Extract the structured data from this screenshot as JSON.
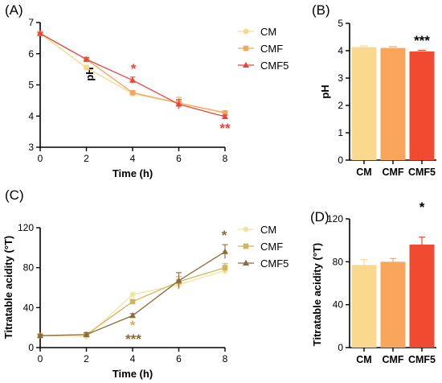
{
  "chart_data": [
    {
      "panel": "(A)",
      "type": "line",
      "xlabel": "Time (h)",
      "ylabel": "pH",
      "xlim": [
        0,
        8
      ],
      "ylim": [
        3,
        7
      ],
      "x": [
        0,
        2,
        4,
        6,
        8
      ],
      "xticks": [
        "0",
        "2",
        "4",
        "6",
        "8"
      ],
      "yticks": [
        "3",
        "4",
        "5",
        "6",
        "7"
      ],
      "series": [
        {
          "name": "CM",
          "color": "#f7d98b",
          "marker": "circle",
          "values": [
            6.65,
            5.55,
            4.72,
            4.42,
            4.12
          ],
          "err": [
            0.03,
            0.08,
            0.06,
            0.1,
            0.05
          ]
        },
        {
          "name": "CMF",
          "color": "#f5a55c",
          "marker": "square",
          "values": [
            6.65,
            5.82,
            4.75,
            4.42,
            4.1
          ],
          "err": [
            0.03,
            0.06,
            0.06,
            0.18,
            0.05
          ]
        },
        {
          "name": "CMF5",
          "color": "#e8453c",
          "marker": "triangle",
          "values": [
            6.65,
            5.82,
            5.15,
            4.38,
            3.98
          ],
          "err": [
            0.03,
            0.05,
            0.1,
            0.15,
            0.05
          ]
        }
      ],
      "legend_position": "top-right",
      "annotations": [
        {
          "x": 4,
          "text": "*",
          "color": "#e8453c"
        },
        {
          "x": 8,
          "text": "**",
          "color": "#e8453c"
        }
      ]
    },
    {
      "panel": "(B)",
      "type": "bar",
      "ylabel": "pH",
      "ylim": [
        0,
        5
      ],
      "yticks": [
        "0",
        "1",
        "2",
        "3",
        "4",
        "5"
      ],
      "categories": [
        "CM",
        "CMF",
        "CMF5"
      ],
      "values": [
        4.13,
        4.1,
        3.97
      ],
      "colors": [
        "#fad98f",
        "#f7a65b",
        "#f04a30"
      ],
      "annotations": [
        {
          "category": "CMF5",
          "text": "***"
        }
      ]
    },
    {
      "panel": "(C)",
      "type": "line",
      "xlabel": "Time (h)",
      "ylabel": "Titratable acidity (°T)",
      "xlim": [
        0,
        8
      ],
      "ylim": [
        0,
        120
      ],
      "x": [
        0,
        2,
        4,
        6,
        8
      ],
      "xticks": [
        "0",
        "2",
        "4",
        "6",
        "8"
      ],
      "yticks": [
        "0",
        "40",
        "80",
        "120"
      ],
      "series": [
        {
          "name": "CM",
          "color": "#f4e3a0",
          "marker": "circle",
          "values": [
            12,
            11,
            53,
            63,
            77
          ],
          "err": [
            1,
            2,
            2,
            4,
            4
          ]
        },
        {
          "name": "CMF",
          "color": "#d2b45a",
          "marker": "square",
          "values": [
            12,
            13,
            46,
            66,
            80
          ],
          "err": [
            1,
            2,
            2,
            5,
            4
          ]
        },
        {
          "name": "CMF5",
          "color": "#8c6a3a",
          "marker": "triangle",
          "values": [
            12,
            13,
            32,
            67,
            96
          ],
          "err": [
            1,
            2,
            2,
            8,
            7
          ]
        }
      ],
      "legend_position": "top-right",
      "annotations": [
        {
          "x": 4,
          "text": "*",
          "color": "#d2b45a"
        },
        {
          "x": 4,
          "text": "***",
          "color": "#8c6a3a"
        },
        {
          "x": 8,
          "text": "*",
          "color": "#8c6a3a"
        }
      ]
    },
    {
      "panel": "(D)",
      "type": "bar",
      "ylabel": "Titratable acidity (°T)",
      "ylim": [
        0,
        120
      ],
      "yticks": [
        "0",
        "40",
        "80",
        "120"
      ],
      "categories": [
        "CM",
        "CMF",
        "CMF5"
      ],
      "values": [
        77,
        80,
        96
      ],
      "errors": [
        5,
        3,
        7
      ],
      "colors": [
        "#fad98f",
        "#f7a65b",
        "#f04a30"
      ],
      "annotations": [
        {
          "category": "CMF5",
          "text": "*"
        }
      ]
    }
  ]
}
